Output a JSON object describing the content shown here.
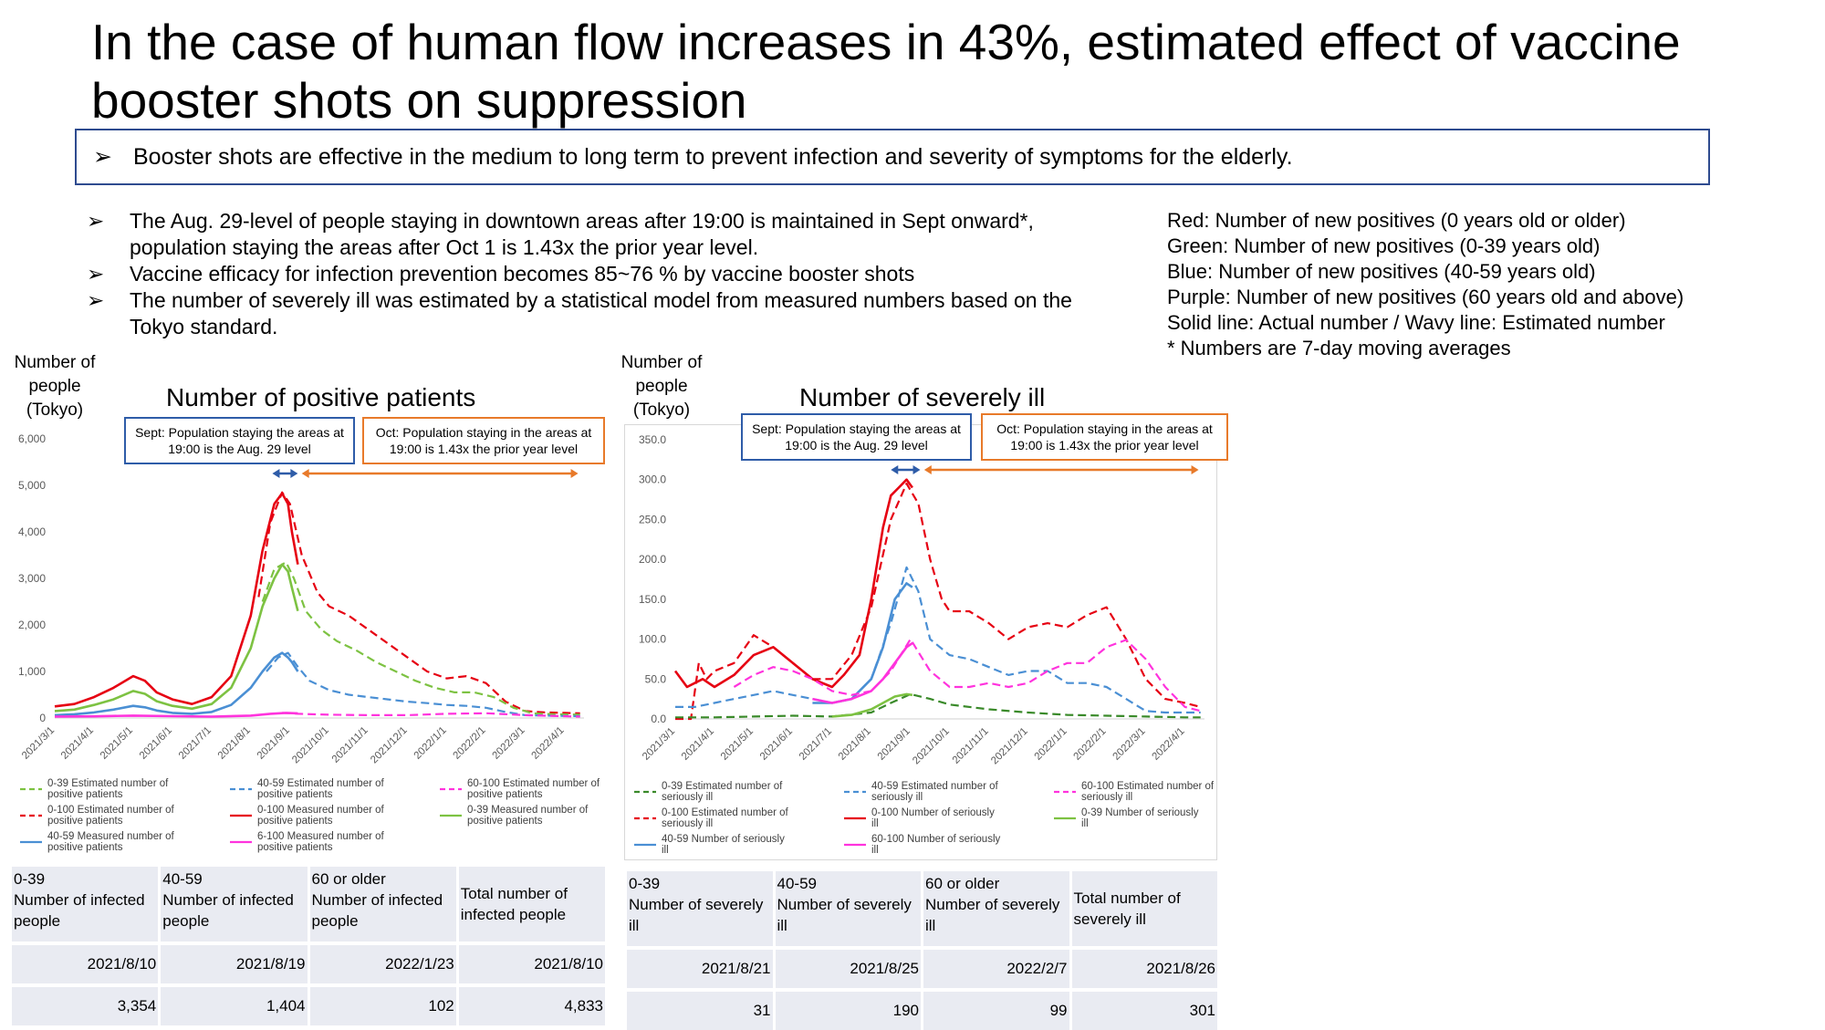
{
  "title": "In the case of human flow increases in 43%, estimated effect of vaccine booster shots on suppression",
  "summary": {
    "marker": "➢",
    "text": "Booster shots are effective in the medium to long term to prevent infection and severity of symptoms for the elderly."
  },
  "bullets": [
    "The Aug. 29-level of people staying in downtown areas after 19:00 is maintained in Sept onward*, population staying the areas after Oct 1 is 1.43x the prior year level.",
    "Vaccine efficacy for infection prevention becomes 85~76 % by vaccine booster shots",
    "The number of severely ill was estimated by a statistical model from measured numbers based on the Tokyo standard."
  ],
  "legend_text": [
    "Red: Number of new positives (0 years old or older)",
    "Green: Number of new positives (0-39 years old)",
    "Blue: Number of new positives (40-59 years old)",
    "Purple: Number of new positives (60 years old and above)",
    "Solid line: Actual number / Wavy line: Estimated number",
    "* Numbers are 7-day moving averages"
  ],
  "colors": {
    "red": "#e60012",
    "green": "#7dc242",
    "blue": "#4a8fd4",
    "magenta": "#ff33dd",
    "darkgreen": "#3a8a2a",
    "callout_blue": "#2e5ca8",
    "callout_orange": "#e87a2a"
  },
  "left_chart": {
    "ylabel": "Number of people (Tokyo)",
    "callout_sept": "Sept: Population staying the areas at 19:00 is the Aug. 29 level",
    "callout_oct": "Oct: Population staying in the areas at 19:00 is 1.43x the prior year level",
    "legend": [
      {
        "label": "0-39 Estimated number of positive patients",
        "color": "#7dc242",
        "dash": true
      },
      {
        "label": "40-59 Estimated number of positive patients",
        "color": "#4a8fd4",
        "dash": true
      },
      {
        "label": "60-100 Estimated number of positive patients",
        "color": "#ff33dd",
        "dash": true
      },
      {
        "label": "0-100 Estimated number of positive patients",
        "color": "#e60012",
        "dash": true
      },
      {
        "label": "0-100 Measured number of positive patients",
        "color": "#e60012",
        "dash": false
      },
      {
        "label": "0-39 Measured number of positive patients",
        "color": "#7dc242",
        "dash": false
      },
      {
        "label": "40-59 Measured number of positive patients",
        "color": "#4a8fd4",
        "dash": false
      },
      {
        "label": "6-100 Measured number of positive patients",
        "color": "#ff33dd",
        "dash": false
      }
    ],
    "table": {
      "headers": [
        "0-39\nNumber of infected people",
        "40-59\nNumber of infected people",
        "60 or older\nNumber of infected people",
        "Total number of infected people"
      ],
      "dates": [
        "2021/8/10",
        "2021/8/19",
        "2022/1/23",
        "2021/8/10"
      ],
      "values": [
        "3,354",
        "1,404",
        "102",
        "4,833"
      ]
    }
  },
  "right_chart": {
    "ylabel": "Number of people (Tokyo)",
    "callout_sept": "Sept: Population staying the areas at 19:00 is the Aug. 29 level",
    "callout_oct": "Oct: Population staying in the areas at 19:00 is 1.43x the prior year level",
    "legend": [
      {
        "label": "0-39 Estimated number of seriously ill",
        "color": "#3a8a2a",
        "dash": true
      },
      {
        "label": "40-59 Estimated number of seriously ill",
        "color": "#4a8fd4",
        "dash": true
      },
      {
        "label": "60-100 Estimated number of seriously ill",
        "color": "#ff33dd",
        "dash": true
      },
      {
        "label": "0-100 Estimated number of seriously ill",
        "color": "#e60012",
        "dash": true
      },
      {
        "label": "0-100 Number of seriously ill",
        "color": "#e60012",
        "dash": false
      },
      {
        "label": "0-39 Number of seriously ill",
        "color": "#7dc242",
        "dash": false
      },
      {
        "label": "40-59 Number of seriously ill",
        "color": "#4a8fd4",
        "dash": false
      },
      {
        "label": "60-100 Number of seriously ill",
        "color": "#ff33dd",
        "dash": false
      }
    ],
    "table": {
      "headers": [
        "0-39\nNumber of severely ill",
        "40-59\nNumber of severely ill",
        "60 or older\nNumber of severely ill",
        "Total number of severely ill"
      ],
      "dates": [
        "2021/8/21",
        "2021/8/25",
        "2022/2/7",
        "2021/8/26"
      ],
      "values": [
        "31",
        "190",
        "99",
        "301"
      ]
    }
  },
  "chart_data": [
    {
      "type": "line",
      "title": "Number of positive patients",
      "ylabel": "Number of people (Tokyo)",
      "ylim": [
        0,
        6000
      ],
      "yticks": [
        "0",
        "1,000",
        "2,000",
        "3,000",
        "4,000",
        "5,000",
        "6,000"
      ],
      "xlim": [
        0,
        13.5
      ],
      "xticks": [
        "2021/3/1",
        "2021/4/1",
        "2021/5/1",
        "2021/6/1",
        "2021/7/1",
        "2021/8/1",
        "2021/9/1",
        "2021/10/1",
        "2021/11/1",
        "2021/12/1",
        "2022/1/1",
        "2022/2/1",
        "2022/3/1",
        "2022/4/1"
      ],
      "grid": false,
      "series": [
        {
          "name": "0-100 Measured number of positive patients",
          "color": "#e60012",
          "dash": false,
          "x": [
            0,
            0.5,
            1,
            1.5,
            2,
            2.3,
            2.6,
            3,
            3.5,
            4,
            4.5,
            5,
            5.3,
            5.6,
            5.8,
            5.95,
            6.05,
            6.2
          ],
          "y": [
            250,
            300,
            450,
            650,
            900,
            800,
            550,
            400,
            300,
            450,
            900,
            2200,
            3600,
            4600,
            4830,
            4600,
            4000,
            3300
          ]
        },
        {
          "name": "0-100 Estimated number of positive patients",
          "color": "#e60012",
          "dash": true,
          "x": [
            5.2,
            5.5,
            5.8,
            6,
            6.3,
            6.7,
            7,
            7.5,
            8,
            8.5,
            9,
            9.5,
            10,
            10.5,
            11,
            11.5,
            12,
            12.5,
            13,
            13.4
          ],
          "y": [
            2600,
            4200,
            4850,
            4600,
            3500,
            2700,
            2400,
            2200,
            1900,
            1600,
            1300,
            1000,
            850,
            900,
            750,
            350,
            150,
            120,
            110,
            100
          ]
        },
        {
          "name": "0-39 Measured number of positive patients",
          "color": "#7dc242",
          "dash": false,
          "x": [
            0,
            0.5,
            1,
            1.5,
            2,
            2.3,
            2.6,
            3,
            3.5,
            4,
            4.5,
            5,
            5.3,
            5.6,
            5.8,
            5.95,
            6.05,
            6.2
          ],
          "y": [
            150,
            180,
            280,
            400,
            580,
            520,
            360,
            260,
            200,
            300,
            650,
            1500,
            2400,
            3000,
            3300,
            3150,
            2800,
            2300
          ]
        },
        {
          "name": "0-39 Estimated number of positive patients",
          "color": "#7dc242",
          "dash": true,
          "x": [
            5.3,
            5.6,
            5.9,
            6.1,
            6.4,
            6.8,
            7.2,
            7.7,
            8.2,
            8.7,
            9.2,
            9.7,
            10.2,
            10.7,
            11.2,
            11.7,
            12.2,
            12.7,
            13.4
          ],
          "y": [
            2500,
            3200,
            3350,
            3000,
            2300,
            1900,
            1650,
            1450,
            1200,
            1000,
            800,
            650,
            550,
            550,
            450,
            220,
            100,
            80,
            70
          ]
        },
        {
          "name": "40-59 Measured number of positive patients",
          "color": "#4a8fd4",
          "dash": false,
          "x": [
            0,
            0.5,
            1,
            1.5,
            2,
            2.3,
            2.6,
            3,
            3.5,
            4,
            4.5,
            5,
            5.3,
            5.6,
            5.8,
            5.95,
            6.05,
            6.2
          ],
          "y": [
            60,
            80,
            120,
            180,
            260,
            230,
            160,
            110,
            90,
            130,
            280,
            650,
            1000,
            1300,
            1400,
            1300,
            1200,
            1000
          ]
        },
        {
          "name": "40-59 Estimated number of positive patients",
          "color": "#4a8fd4",
          "dash": true,
          "x": [
            5.4,
            5.7,
            5.95,
            6.2,
            6.5,
            7,
            7.5,
            8,
            8.5,
            9,
            9.5,
            10,
            10.5,
            11,
            11.5,
            12,
            12.5,
            13.4
          ],
          "y": [
            1000,
            1300,
            1400,
            1100,
            800,
            600,
            500,
            450,
            400,
            350,
            320,
            280,
            260,
            220,
            130,
            60,
            50,
            40
          ]
        },
        {
          "name": "6-100 Measured number of positive patients",
          "color": "#ff33dd",
          "dash": false,
          "x": [
            0,
            1,
            2,
            3,
            4,
            5,
            5.5,
            5.9,
            6.2
          ],
          "y": [
            30,
            35,
            50,
            40,
            30,
            50,
            90,
            110,
            100
          ]
        },
        {
          "name": "60-100 Estimated number of positive patients",
          "color": "#ff33dd",
          "dash": true,
          "x": [
            5.8,
            6.2,
            7,
            8,
            9,
            10,
            11,
            12,
            13.4
          ],
          "y": [
            110,
            90,
            70,
            60,
            60,
            90,
            102,
            60,
            30
          ]
        }
      ]
    },
    {
      "type": "line",
      "title": "Number of severely ill",
      "ylabel": "Number of people (Tokyo)",
      "ylim": [
        0,
        350
      ],
      "yticks": [
        "0.0",
        "50.0",
        "100.0",
        "150.0",
        "200.0",
        "250.0",
        "300.0",
        "350.0"
      ],
      "xlim": [
        0,
        13.5
      ],
      "xticks": [
        "2021/3/1",
        "2021/4/1",
        "2021/5/1",
        "2021/6/1",
        "2021/7/1",
        "2021/8/1",
        "2021/9/1",
        "2021/10/1",
        "2021/11/1",
        "2021/12/1",
        "2022/1/1",
        "2022/2/1",
        "2022/3/1",
        "2022/4/1"
      ],
      "grid": false,
      "series": [
        {
          "name": "0-100 Number of seriously ill",
          "color": "#e60012",
          "dash": false,
          "x": [
            0,
            0.3,
            0.7,
            1,
            1.5,
            2,
            2.5,
            3,
            3.5,
            4,
            4.3,
            4.7,
            5,
            5.3,
            5.5,
            5.7,
            5.9,
            6.05
          ],
          "y": [
            60,
            40,
            50,
            40,
            55,
            80,
            90,
            70,
            50,
            40,
            55,
            80,
            150,
            240,
            280,
            290,
            300,
            290
          ]
        },
        {
          "name": "0-100 Estimated number of seriously ill",
          "color": "#e60012",
          "dash": true,
          "x": [
            0,
            0.4,
            0.6,
            0.8,
            1,
            1.5,
            2,
            2.5,
            3,
            3.5,
            4,
            4.5,
            5,
            5.5,
            5.9,
            6.2,
            6.5,
            6.8,
            7,
            7.5,
            8,
            8.5,
            9,
            9.5,
            10,
            10.5,
            11,
            11.5,
            12,
            12.5,
            13,
            13.4
          ],
          "y": [
            0,
            0,
            70,
            50,
            60,
            70,
            105,
            90,
            70,
            50,
            50,
            80,
            140,
            250,
            295,
            270,
            200,
            150,
            135,
            135,
            120,
            100,
            115,
            120,
            115,
            130,
            140,
            100,
            50,
            25,
            20,
            15
          ]
        },
        {
          "name": "40-59 Estimated number of seriously ill",
          "color": "#4a8fd4",
          "dash": true,
          "x": [
            0,
            0.5,
            1,
            1.5,
            2,
            2.5,
            3,
            3.5,
            4,
            4.5,
            5,
            5.5,
            5.9,
            6.2,
            6.5,
            7,
            7.5,
            8,
            8.5,
            9,
            9.5,
            10,
            10.5,
            11,
            11.5,
            12,
            12.5,
            13,
            13.4
          ],
          "y": [
            15,
            15,
            20,
            25,
            30,
            35,
            30,
            25,
            20,
            25,
            50,
            120,
            190,
            160,
            100,
            80,
            75,
            65,
            55,
            60,
            60,
            45,
            45,
            40,
            25,
            10,
            8,
            8,
            8
          ]
        },
        {
          "name": "40-59 Number of seriously ill",
          "color": "#4a8fd4",
          "dash": false,
          "x": [
            3.5,
            4,
            4.5,
            5,
            5.3,
            5.6,
            5.9,
            6.05
          ],
          "y": [
            20,
            20,
            25,
            50,
            90,
            150,
            170,
            165
          ]
        },
        {
          "name": "60-100 Estimated number of seriously ill",
          "color": "#ff33dd",
          "dash": true,
          "x": [
            1.5,
            2,
            2.5,
            3,
            3.5,
            4,
            4.5,
            5,
            5.5,
            6,
            6.5,
            7,
            7.5,
            8,
            8.5,
            9,
            9.5,
            10,
            10.5,
            11,
            11.5,
            12,
            12.5,
            13,
            13.4
          ],
          "y": [
            40,
            55,
            65,
            60,
            50,
            35,
            30,
            35,
            60,
            100,
            60,
            40,
            40,
            45,
            40,
            45,
            60,
            70,
            70,
            90,
            99,
            75,
            40,
            15,
            10
          ]
        },
        {
          "name": "60-100 Number of seriously ill",
          "color": "#ff33dd",
          "dash": false,
          "x": [
            3.5,
            4,
            4.5,
            5,
            5.3,
            5.6,
            5.9,
            6.05
          ],
          "y": [
            25,
            20,
            25,
            35,
            50,
            70,
            90,
            95
          ]
        },
        {
          "name": "0-39 Estimated number of seriously ill",
          "color": "#3a8a2a",
          "dash": true,
          "x": [
            0,
            1,
            2,
            3,
            4,
            5,
            5.5,
            6,
            6.5,
            7,
            8,
            9,
            10,
            11,
            12,
            13,
            13.4
          ],
          "y": [
            2,
            2,
            3,
            4,
            3,
            8,
            20,
            31,
            25,
            18,
            12,
            8,
            5,
            4,
            3,
            2,
            2
          ]
        },
        {
          "name": "0-39 Number of seriously ill",
          "color": "#7dc242",
          "dash": false,
          "x": [
            4,
            4.5,
            5,
            5.3,
            5.6,
            5.9,
            6.05
          ],
          "y": [
            3,
            5,
            12,
            20,
            28,
            31,
            30
          ]
        }
      ]
    }
  ]
}
